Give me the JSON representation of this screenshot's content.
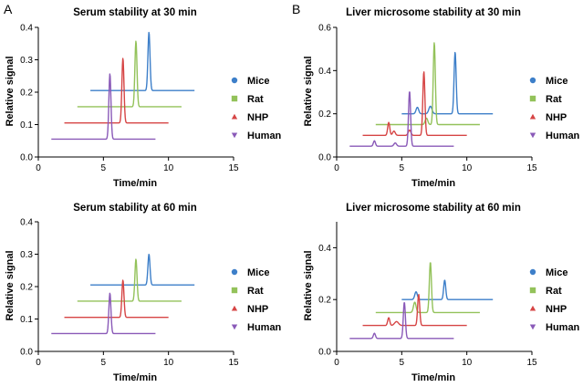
{
  "figure": {
    "panel_letters": [
      "A",
      "B"
    ]
  },
  "colors": {
    "Mice": "#3d7fc9",
    "Rat": "#93c25a",
    "NHP": "#d64545",
    "Human": "#8a5ab8"
  },
  "chart_data": [
    {
      "type": "line",
      "panel": "A",
      "title": "Serum stability at 30 min",
      "xlabel": "Time/min",
      "ylabel": "Relative signal",
      "xlim": [
        0,
        15
      ],
      "ylim": [
        0,
        0.4
      ],
      "xticks": [
        0,
        5,
        10,
        15
      ],
      "yticks": [
        0.0,
        0.1,
        0.2,
        0.3,
        0.4
      ],
      "legend": "right",
      "series": [
        {
          "name": "Mice",
          "marker": "circle",
          "x_start": 4,
          "x_end": 12,
          "baseline": 0.205,
          "peaks": [
            {
              "x": 8.5,
              "y": 0.385,
              "width": 0.08
            }
          ]
        },
        {
          "name": "Rat",
          "marker": "square",
          "x_start": 3,
          "x_end": 11,
          "baseline": 0.155,
          "peaks": [
            {
              "x": 7.5,
              "y": 0.358,
              "width": 0.08
            }
          ]
        },
        {
          "name": "NHP",
          "marker": "triangle-up",
          "x_start": 2,
          "x_end": 10,
          "baseline": 0.105,
          "peaks": [
            {
              "x": 6.5,
              "y": 0.305,
              "width": 0.08
            }
          ]
        },
        {
          "name": "Human",
          "marker": "triangle-down",
          "x_start": 1,
          "x_end": 9,
          "baseline": 0.055,
          "peaks": [
            {
              "x": 5.5,
              "y": 0.257,
              "width": 0.08
            }
          ]
        }
      ]
    },
    {
      "type": "line",
      "panel": "B",
      "title": "Liver microsome stability at 30 min",
      "xlabel": "Time/min",
      "ylabel": "Relative signal",
      "xlim": [
        0,
        15
      ],
      "ylim": [
        0,
        0.6
      ],
      "xticks": [
        0,
        5,
        10,
        15
      ],
      "yticks": [
        0.0,
        0.2,
        0.4,
        0.6
      ],
      "legend": "right",
      "series": [
        {
          "name": "Mice",
          "marker": "circle",
          "x_start": 5,
          "x_end": 12,
          "baseline": 0.2,
          "peaks": [
            {
              "x": 6.2,
              "y": 0.23,
              "width": 0.1
            },
            {
              "x": 7.2,
              "y": 0.235,
              "width": 0.12
            },
            {
              "x": 9.1,
              "y": 0.485,
              "width": 0.08
            }
          ]
        },
        {
          "name": "Rat",
          "marker": "square",
          "x_start": 3,
          "x_end": 11,
          "baseline": 0.15,
          "peaks": [
            {
              "x": 6.9,
              "y": 0.18,
              "width": 0.1
            },
            {
              "x": 7.5,
              "y": 0.53,
              "width": 0.08
            }
          ]
        },
        {
          "name": "NHP",
          "marker": "triangle-up",
          "x_start": 2,
          "x_end": 10,
          "baseline": 0.1,
          "peaks": [
            {
              "x": 4.0,
              "y": 0.16,
              "width": 0.08
            },
            {
              "x": 4.4,
              "y": 0.12,
              "width": 0.1
            },
            {
              "x": 5.6,
              "y": 0.125,
              "width": 0.1
            },
            {
              "x": 6.7,
              "y": 0.395,
              "width": 0.08
            }
          ]
        },
        {
          "name": "Human",
          "marker": "triangle-down",
          "x_start": 1,
          "x_end": 9,
          "baseline": 0.05,
          "peaks": [
            {
              "x": 2.9,
              "y": 0.075,
              "width": 0.08
            },
            {
              "x": 4.5,
              "y": 0.065,
              "width": 0.1
            },
            {
              "x": 5.6,
              "y": 0.305,
              "width": 0.08
            }
          ]
        }
      ]
    },
    {
      "type": "line",
      "panel": "A",
      "title": "Serum stability at 60 min",
      "xlabel": "Time/min",
      "ylabel": "Relative signal",
      "xlim": [
        0,
        15
      ],
      "ylim": [
        0,
        0.4
      ],
      "xticks": [
        0,
        5,
        10,
        15
      ],
      "yticks": [
        0.0,
        0.1,
        0.2,
        0.3,
        0.4
      ],
      "legend": "right",
      "series": [
        {
          "name": "Mice",
          "marker": "circle",
          "x_start": 4,
          "x_end": 12,
          "baseline": 0.205,
          "peaks": [
            {
              "x": 8.5,
              "y": 0.3,
              "width": 0.08
            }
          ]
        },
        {
          "name": "Rat",
          "marker": "square",
          "x_start": 3,
          "x_end": 11,
          "baseline": 0.155,
          "peaks": [
            {
              "x": 7.5,
              "y": 0.285,
              "width": 0.08
            }
          ]
        },
        {
          "name": "NHP",
          "marker": "triangle-up",
          "x_start": 2,
          "x_end": 10,
          "baseline": 0.105,
          "peaks": [
            {
              "x": 6.5,
              "y": 0.22,
              "width": 0.08
            }
          ]
        },
        {
          "name": "Human",
          "marker": "triangle-down",
          "x_start": 1,
          "x_end": 9,
          "baseline": 0.055,
          "peaks": [
            {
              "x": 5.5,
              "y": 0.18,
              "width": 0.08
            }
          ]
        }
      ]
    },
    {
      "type": "line",
      "panel": "B",
      "title": "Liver microsome stability at 60 min",
      "xlabel": "Time/min",
      "ylabel": "Relative signal",
      "xlim": [
        0,
        15
      ],
      "ylim": [
        0,
        0.5
      ],
      "xticks": [
        0,
        5,
        10,
        15
      ],
      "yticks": [
        0.0,
        0.2,
        0.4
      ],
      "legend": "right",
      "series": [
        {
          "name": "Mice",
          "marker": "circle",
          "x_start": 5,
          "x_end": 12,
          "baseline": 0.2,
          "peaks": [
            {
              "x": 6.1,
              "y": 0.23,
              "width": 0.1
            },
            {
              "x": 8.3,
              "y": 0.275,
              "width": 0.08
            }
          ]
        },
        {
          "name": "Rat",
          "marker": "square",
          "x_start": 3,
          "x_end": 11,
          "baseline": 0.15,
          "peaks": [
            {
              "x": 6.0,
              "y": 0.19,
              "width": 0.1
            },
            {
              "x": 7.2,
              "y": 0.345,
              "width": 0.08
            }
          ]
        },
        {
          "name": "NHP",
          "marker": "triangle-up",
          "x_start": 2,
          "x_end": 10,
          "baseline": 0.1,
          "peaks": [
            {
              "x": 4.0,
              "y": 0.13,
              "width": 0.08
            },
            {
              "x": 4.6,
              "y": 0.115,
              "width": 0.15
            },
            {
              "x": 6.3,
              "y": 0.22,
              "width": 0.08
            }
          ]
        },
        {
          "name": "Human",
          "marker": "triangle-down",
          "x_start": 1,
          "x_end": 9,
          "baseline": 0.05,
          "peaks": [
            {
              "x": 2.9,
              "y": 0.07,
              "width": 0.08
            },
            {
              "x": 5.2,
              "y": 0.19,
              "width": 0.08
            }
          ]
        }
      ]
    }
  ]
}
